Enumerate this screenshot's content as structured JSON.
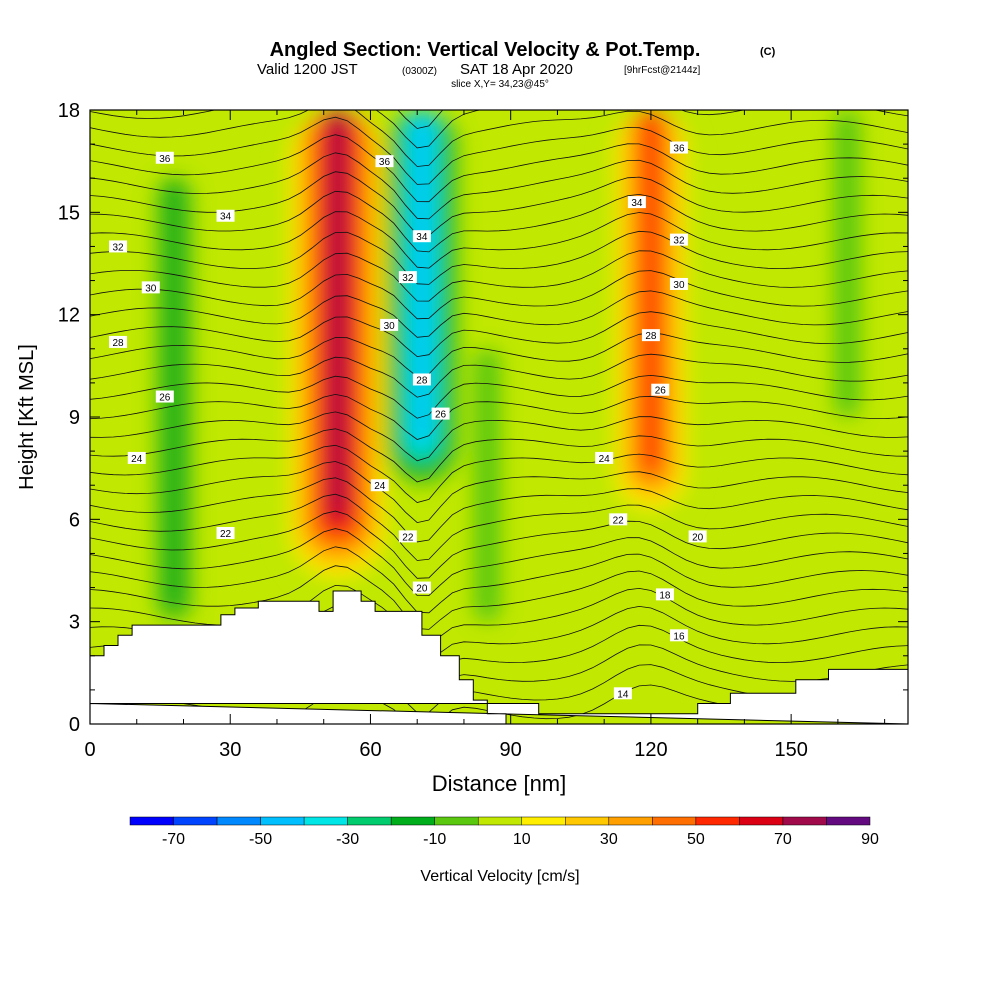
{
  "title": {
    "main": "Angled Section: Vertical Velocity & Pot.Temp.",
    "main_units": "(C)",
    "valid_a": "Valid 1200 JST",
    "valid_b": "(0300Z)",
    "valid_c": "SAT 18 Apr 2020",
    "valid_d": "[9hrFcst@2144z]",
    "slice": "slice X,Y= 34,23@45°"
  },
  "chart_data": {
    "type": "heatmap",
    "xlabel": "Distance [nm]",
    "ylabel": "Height [Kft MSL]",
    "xlim": [
      0,
      175
    ],
    "ylim": [
      0,
      18
    ],
    "x_ticks": [
      0,
      30,
      60,
      90,
      120,
      150
    ],
    "y_ticks": [
      0,
      3,
      6,
      9,
      12,
      15,
      18
    ],
    "colorbar": {
      "label": "Vertical Velocity [cm/s]",
      "tick_labels": [
        "-70",
        "-50",
        "-30",
        "-10",
        "10",
        "30",
        "50",
        "70",
        "90"
      ],
      "bins": [
        {
          "from": -80,
          "to": -70,
          "color": "#0000ff"
        },
        {
          "from": -70,
          "to": -60,
          "color": "#0044ff"
        },
        {
          "from": -60,
          "to": -50,
          "color": "#0088ff"
        },
        {
          "from": -50,
          "to": -40,
          "color": "#00bfff"
        },
        {
          "from": -40,
          "to": -30,
          "color": "#00e5e5"
        },
        {
          "from": -30,
          "to": -20,
          "color": "#00cc6e"
        },
        {
          "from": -20,
          "to": -10,
          "color": "#00ad1b"
        },
        {
          "from": -10,
          "to": 0,
          "color": "#5ac80f"
        },
        {
          "from": 0,
          "to": 10,
          "color": "#c0e800"
        },
        {
          "from": 10,
          "to": 20,
          "color": "#ffee00"
        },
        {
          "from": 20,
          "to": 30,
          "color": "#ffc800"
        },
        {
          "from": 30,
          "to": 40,
          "color": "#ffa000"
        },
        {
          "from": 40,
          "to": 50,
          "color": "#ff6e00"
        },
        {
          "from": 50,
          "to": 60,
          "color": "#ff2800"
        },
        {
          "from": 60,
          "to": 70,
          "color": "#dc0014"
        },
        {
          "from": 70,
          "to": 80,
          "color": "#a00a4a"
        },
        {
          "from": 80,
          "to": 90,
          "color": "#640a80"
        }
      ]
    },
    "velocity_features": [
      {
        "x": 53,
        "z_from": 4,
        "z_to": 18,
        "value": 75
      },
      {
        "x": 71,
        "z_from": 7,
        "z_to": 18,
        "value": -45
      },
      {
        "x": 120,
        "z_from": 6,
        "z_to": 18,
        "value": 60
      },
      {
        "x": 18,
        "z_from": 3,
        "z_to": 16,
        "value": -15
      },
      {
        "x": 85,
        "z_from": 3,
        "z_to": 11,
        "value": -10
      },
      {
        "x": 162,
        "z_from": 9,
        "z_to": 18,
        "value": -8
      }
    ],
    "isentrope_labels": [
      {
        "x": 16,
        "z": 16.6,
        "text": "36"
      },
      {
        "x": 63,
        "z": 16.5,
        "text": "36"
      },
      {
        "x": 126,
        "z": 16.9,
        "text": "36"
      },
      {
        "x": 29,
        "z": 14.9,
        "text": "34"
      },
      {
        "x": 71,
        "z": 14.3,
        "text": "34"
      },
      {
        "x": 117,
        "z": 15.3,
        "text": "34"
      },
      {
        "x": 6,
        "z": 14.0,
        "text": "32"
      },
      {
        "x": 68,
        "z": 13.1,
        "text": "32"
      },
      {
        "x": 126,
        "z": 14.2,
        "text": "32"
      },
      {
        "x": 13,
        "z": 12.8,
        "text": "30"
      },
      {
        "x": 64,
        "z": 11.7,
        "text": "30"
      },
      {
        "x": 126,
        "z": 12.9,
        "text": "30"
      },
      {
        "x": 6,
        "z": 11.2,
        "text": "28"
      },
      {
        "x": 71,
        "z": 10.1,
        "text": "28"
      },
      {
        "x": 120,
        "z": 11.4,
        "text": "28"
      },
      {
        "x": 16,
        "z": 9.6,
        "text": "26"
      },
      {
        "x": 75,
        "z": 9.1,
        "text": "26"
      },
      {
        "x": 122,
        "z": 9.8,
        "text": "26"
      },
      {
        "x": 10,
        "z": 7.8,
        "text": "24"
      },
      {
        "x": 62,
        "z": 7.0,
        "text": "24"
      },
      {
        "x": 110,
        "z": 7.8,
        "text": "24"
      },
      {
        "x": 29,
        "z": 5.6,
        "text": "22"
      },
      {
        "x": 68,
        "z": 5.5,
        "text": "22"
      },
      {
        "x": 113,
        "z": 6.0,
        "text": "22"
      },
      {
        "x": 71,
        "z": 4.0,
        "text": "20"
      },
      {
        "x": 130,
        "z": 5.5,
        "text": "20"
      },
      {
        "x": 123,
        "z": 3.8,
        "text": "18"
      },
      {
        "x": 126,
        "z": 2.6,
        "text": "16"
      },
      {
        "x": 114,
        "z": 0.9,
        "text": "14"
      }
    ],
    "terrain": [
      [
        0,
        2.0
      ],
      [
        3,
        2.0
      ],
      [
        3,
        2.3
      ],
      [
        6,
        2.3
      ],
      [
        6,
        2.6
      ],
      [
        9,
        2.6
      ],
      [
        9,
        2.9
      ],
      [
        28,
        2.9
      ],
      [
        28,
        3.2
      ],
      [
        31,
        3.2
      ],
      [
        31,
        3.4
      ],
      [
        36,
        3.4
      ],
      [
        36,
        3.6
      ],
      [
        49,
        3.6
      ],
      [
        49,
        3.3
      ],
      [
        52,
        3.3
      ],
      [
        52,
        3.9
      ],
      [
        58,
        3.9
      ],
      [
        58,
        3.6
      ],
      [
        61,
        3.6
      ],
      [
        61,
        3.3
      ],
      [
        71,
        3.3
      ],
      [
        71,
        2.6
      ],
      [
        75,
        2.6
      ],
      [
        75,
        2.0
      ],
      [
        79,
        2.0
      ],
      [
        79,
        1.3
      ],
      [
        82,
        1.3
      ],
      [
        82,
        0.7
      ],
      [
        85,
        0.7
      ],
      [
        85,
        0.3
      ],
      [
        89,
        0.3
      ],
      [
        89,
        0.0
      ],
      [
        175,
        0.0
      ],
      [
        175,
        1.6
      ],
      [
        158,
        1.6
      ],
      [
        158,
        1.3
      ],
      [
        151,
        1.3
      ],
      [
        151,
        0.9
      ],
      [
        137,
        0.9
      ],
      [
        137,
        0.6
      ],
      [
        130,
        0.6
      ],
      [
        130,
        0.3
      ],
      [
        96,
        0.3
      ],
      [
        96,
        0.6
      ],
      [
        0,
        0.6
      ]
    ]
  }
}
